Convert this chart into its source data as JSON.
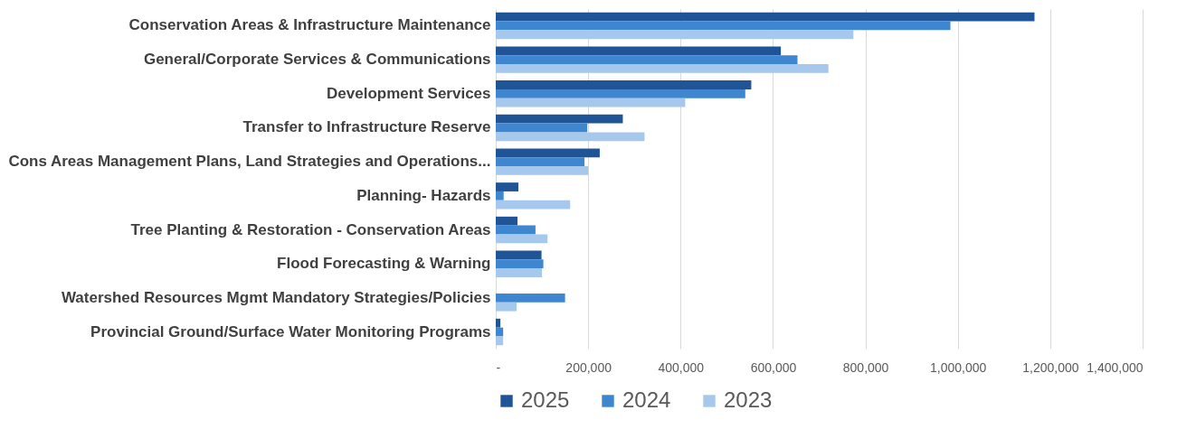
{
  "chart_data": {
    "type": "bar",
    "orientation": "horizontal",
    "categories": [
      "Conservation Areas & Infrastructure Maintenance",
      "General/Corporate Services & Communications",
      "Development Services ",
      "Transfer to Infrastructure Reserve",
      "Cons Areas Management Plans, Land Strategies and Operations...",
      "Planning- Hazards",
      "Tree Planting & Restoration - Conservation Areas",
      "Flood Forecasting & Warning",
      "Watershed Resources Mgmt Mandatory Strategies/Policies",
      "Provincial Ground/Surface Water Monitoring Programs"
    ],
    "series": [
      {
        "name": "2025",
        "color": "#1f5597",
        "values": [
          1166000,
          617000,
          553000,
          275000,
          225000,
          49000,
          47000,
          99000,
          0,
          10000
        ]
      },
      {
        "name": "2024",
        "color": "#3f86d0",
        "values": [
          984000,
          653000,
          540000,
          198000,
          192000,
          17000,
          86000,
          103000,
          150000,
          16000
        ]
      },
      {
        "name": "2023",
        "color": "#a6c8ec",
        "values": [
          774000,
          720000,
          410000,
          322000,
          200000,
          161000,
          112000,
          100000,
          45000,
          16000
        ]
      }
    ],
    "xlim": [
      0,
      1400000
    ],
    "xticks": [
      {
        "value": 0,
        "label": "-"
      },
      {
        "value": 200000,
        "label": "200,000"
      },
      {
        "value": 400000,
        "label": "400,000"
      },
      {
        "value": 600000,
        "label": "600,000"
      },
      {
        "value": 800000,
        "label": "800,000"
      },
      {
        "value": 1000000,
        "label": "1,000,000"
      },
      {
        "value": 1200000,
        "label": "1,200,000"
      },
      {
        "value": 1400000,
        "label": "1,400,000"
      }
    ],
    "grid": "x",
    "legend": "bottom"
  }
}
